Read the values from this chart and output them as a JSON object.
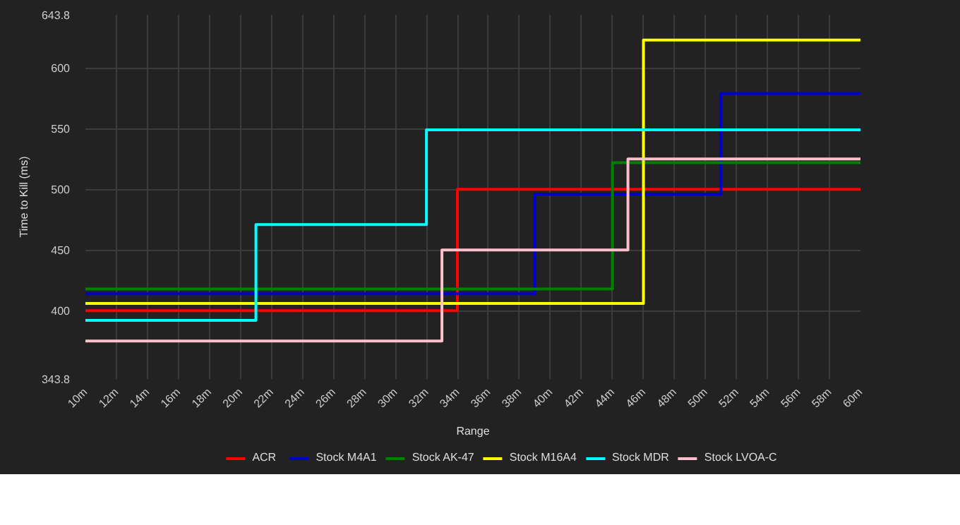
{
  "chart_data": {
    "type": "step",
    "xlabel": "Range",
    "ylabel": "Time to Kill (ms)",
    "xlim": [
      10,
      60
    ],
    "xticks": [
      {
        "value": 10,
        "label": "10m"
      },
      {
        "value": 12,
        "label": "12m"
      },
      {
        "value": 14,
        "label": "14m"
      },
      {
        "value": 16,
        "label": "16m"
      },
      {
        "value": 18,
        "label": "18m"
      },
      {
        "value": 20,
        "label": "20m"
      },
      {
        "value": 22,
        "label": "22m"
      },
      {
        "value": 24,
        "label": "24m"
      },
      {
        "value": 26,
        "label": "26m"
      },
      {
        "value": 28,
        "label": "28m"
      },
      {
        "value": 30,
        "label": "30m"
      },
      {
        "value": 32,
        "label": "32m"
      },
      {
        "value": 34,
        "label": "34m"
      },
      {
        "value": 36,
        "label": "36m"
      },
      {
        "value": 38,
        "label": "38m"
      },
      {
        "value": 40,
        "label": "40m"
      },
      {
        "value": 42,
        "label": "42m"
      },
      {
        "value": 44,
        "label": "44m"
      },
      {
        "value": 46,
        "label": "46m"
      },
      {
        "value": 48,
        "label": "48m"
      },
      {
        "value": 50,
        "label": "50m"
      },
      {
        "value": 52,
        "label": "52m"
      },
      {
        "value": 54,
        "label": "54m"
      },
      {
        "value": 56,
        "label": "56m"
      },
      {
        "value": 58,
        "label": "58m"
      },
      {
        "value": 60,
        "label": "60m"
      }
    ],
    "ylim": [
      343.8,
      643.8
    ],
    "yticks": [
      343.8,
      400,
      450,
      500,
      550,
      600,
      643.8
    ],
    "grid": true,
    "legend": "bottom",
    "marker": "none",
    "line_style": "solid",
    "series": [
      {
        "name": "ACR",
        "color": "#ff0000",
        "x": [
          10,
          34,
          60
        ],
        "values": [
          400,
          500,
          500
        ]
      },
      {
        "name": "Stock M4A1",
        "color": "#0000cc",
        "x": [
          10,
          39,
          51,
          60
        ],
        "values": [
          414,
          496,
          579,
          579
        ]
      },
      {
        "name": "Stock AK-47",
        "color": "#008000",
        "x": [
          10,
          44,
          60
        ],
        "values": [
          418,
          522,
          522
        ]
      },
      {
        "name": "Stock M16A4",
        "color": "#ffff00",
        "x": [
          10,
          46,
          60
        ],
        "values": [
          406,
          623,
          623
        ]
      },
      {
        "name": "Stock MDR",
        "color": "#00ffff",
        "x": [
          10,
          21,
          32,
          60
        ],
        "values": [
          392,
          471,
          549,
          549
        ]
      },
      {
        "name": "Stock LVOA-C",
        "color": "#ffc0cb",
        "x": [
          10,
          33,
          45,
          60
        ],
        "values": [
          375,
          450,
          525,
          525
        ]
      }
    ]
  }
}
